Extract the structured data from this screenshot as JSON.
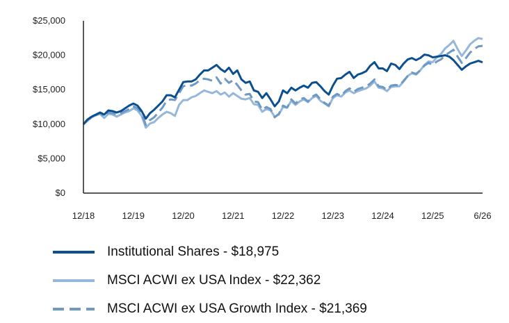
{
  "chart_data": {
    "type": "line",
    "title": "",
    "xlabel": "",
    "ylabel": "",
    "ylim": [
      0,
      25000
    ],
    "y_ticks": [
      "$25,000",
      "$20,000",
      "$15,000",
      "$10,000",
      "$5,000",
      "$0"
    ],
    "y_tick_values": [
      25000,
      20000,
      15000,
      10000,
      5000,
      0
    ],
    "x_ticks": [
      "12/18",
      "12/19",
      "12/20",
      "12/21",
      "12/22",
      "12/23",
      "12/24",
      "12/25",
      "6/26"
    ],
    "x_tick_values": [
      0,
      12,
      24,
      36,
      48,
      60,
      72,
      84,
      96
    ],
    "x_range": [
      0,
      96
    ],
    "grid": false,
    "legend_position": "bottom",
    "series": [
      {
        "name": "Institutional Shares - $18,975",
        "color": "#0b4f8f",
        "style": "solid",
        "values": [
          10000,
          10700,
          11100,
          11400,
          11700,
          11400,
          12000,
          11900,
          11700,
          11900,
          12300,
          12700,
          13000,
          12700,
          11900,
          10800,
          11600,
          12100,
          12700,
          13300,
          14200,
          14200,
          13900,
          15000,
          16100,
          16200,
          16200,
          16500,
          17200,
          17800,
          17800,
          18200,
          18600,
          18000,
          17600,
          18200,
          17300,
          17800,
          16500,
          16000,
          16200,
          14900,
          14700,
          13800,
          14500,
          13600,
          12600,
          13300,
          14900,
          14500,
          15300,
          14900,
          15300,
          15600,
          15300,
          16000,
          16100,
          15500,
          14800,
          14300,
          15600,
          16600,
          16700,
          17200,
          17600,
          16700,
          17200,
          17400,
          17700,
          18500,
          19000,
          18100,
          18100,
          17700,
          18800,
          18600,
          18000,
          18800,
          19400,
          19600,
          19300,
          19600,
          20100,
          20000,
          19700,
          19800,
          19900,
          20000,
          19800,
          19300,
          18600,
          17900,
          18400,
          18800,
          19000,
          19200,
          18975
        ]
      },
      {
        "name": "MSCI ACWI ex USA Index - $22,362",
        "color": "#95b7d9",
        "style": "solid",
        "values": [
          10000,
          10500,
          11000,
          11300,
          11500,
          10900,
          11500,
          11400,
          11100,
          11400,
          11700,
          11900,
          12300,
          12000,
          11200,
          9500,
          10100,
          10300,
          10900,
          11400,
          11800,
          11600,
          11200,
          12800,
          13500,
          13500,
          13900,
          14100,
          14500,
          14900,
          14700,
          14500,
          14800,
          14300,
          14600,
          14000,
          14500,
          14100,
          13700,
          13600,
          13800,
          12900,
          12800,
          11800,
          12200,
          12000,
          11100,
          11400,
          12500,
          12400,
          13400,
          12800,
          13300,
          13600,
          13200,
          13800,
          14100,
          13400,
          13000,
          12600,
          13800,
          14200,
          14000,
          14600,
          14900,
          14500,
          14800,
          15000,
          15200,
          15600,
          16200,
          15300,
          15200,
          14800,
          15400,
          15500,
          15500,
          16200,
          17000,
          17400,
          17200,
          17800,
          18600,
          19100,
          19000,
          19700,
          20200,
          21000,
          21500,
          22100,
          20900,
          19900,
          20700,
          21600,
          22100,
          22500,
          22362
        ]
      },
      {
        "name": "MSCI ACWI ex USA Growth Index - $21,369",
        "color": "#6e99c4",
        "style": "dashed",
        "values": [
          10000,
          10600,
          11000,
          11300,
          11600,
          11100,
          11700,
          11600,
          11400,
          11600,
          11900,
          12200,
          12600,
          12300,
          11600,
          9900,
          10600,
          11000,
          11700,
          12400,
          13400,
          13600,
          13500,
          14500,
          15500,
          15700,
          15600,
          15900,
          16400,
          16600,
          16500,
          16300,
          16800,
          15900,
          16600,
          16000,
          16400,
          15700,
          14900,
          14300,
          14400,
          13300,
          13200,
          12100,
          12500,
          12200,
          11000,
          11500,
          12700,
          12400,
          13600,
          13000,
          13600,
          13800,
          13300,
          14000,
          14300,
          13600,
          13100,
          12700,
          14000,
          14400,
          14100,
          14800,
          15200,
          14700,
          15100,
          15300,
          15500,
          15900,
          16500,
          15500,
          15400,
          15000,
          15600,
          15700,
          15600,
          16300,
          17000,
          17500,
          17300,
          17800,
          18500,
          18900,
          18600,
          19100,
          19400,
          20000,
          20400,
          20800,
          19800,
          18900,
          19600,
          20400,
          20900,
          21300,
          21369
        ]
      }
    ]
  }
}
